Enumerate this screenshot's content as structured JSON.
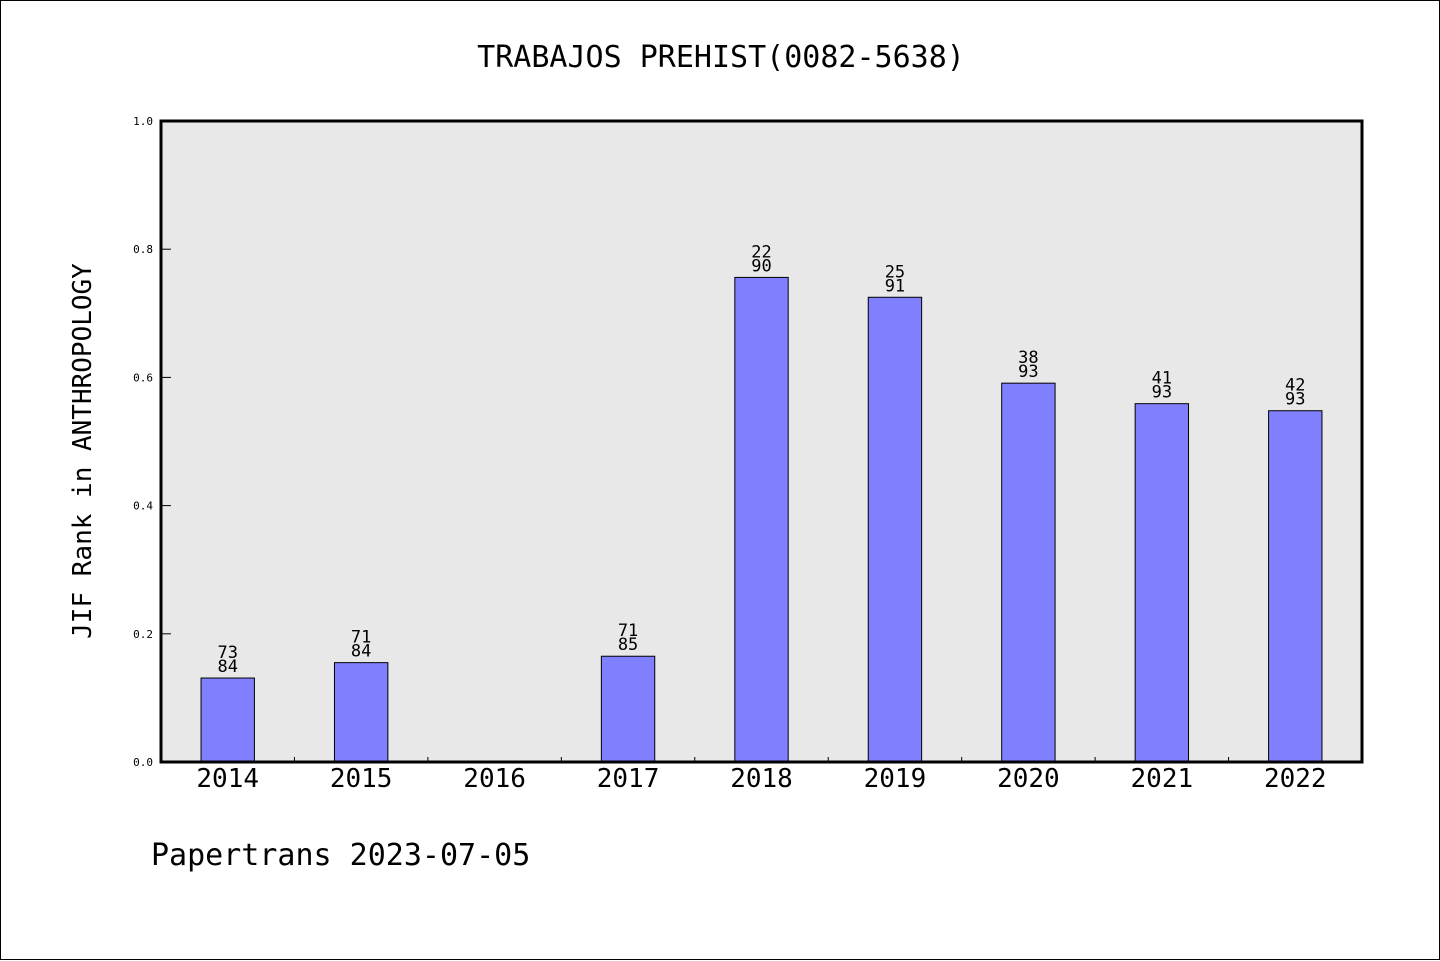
{
  "chart_data": {
    "type": "bar",
    "title": "TRABAJOS PREHIST(0082-5638)",
    "ylabel": "JIF Rank in ANTHROPOLOGY",
    "xlabel": "",
    "categories": [
      "2014",
      "2015",
      "2016",
      "2017",
      "2018",
      "2019",
      "2020",
      "2021",
      "2022"
    ],
    "values": [
      0.131,
      0.155,
      null,
      0.165,
      0.756,
      0.725,
      0.591,
      0.559,
      0.548
    ],
    "rank_labels": [
      [
        "73",
        "84"
      ],
      [
        "71",
        "84"
      ],
      null,
      [
        "71",
        "85"
      ],
      [
        "22",
        "90"
      ],
      [
        "25",
        "91"
      ],
      [
        "38",
        "93"
      ],
      [
        "41",
        "93"
      ],
      [
        "42",
        "93"
      ]
    ],
    "ylim": [
      0,
      1.0
    ],
    "yticks": [
      "0.0",
      "0.2",
      "0.4",
      "0.6",
      "0.8",
      "1.0"
    ],
    "ytick_values": [
      0.0,
      0.2,
      0.4,
      0.6,
      0.8,
      1.0
    ],
    "grid": false,
    "bar_color": "#8080ff",
    "plot_background": "#e8e8e8"
  },
  "footer": {
    "text": "Papertrans 2023-07-05"
  }
}
